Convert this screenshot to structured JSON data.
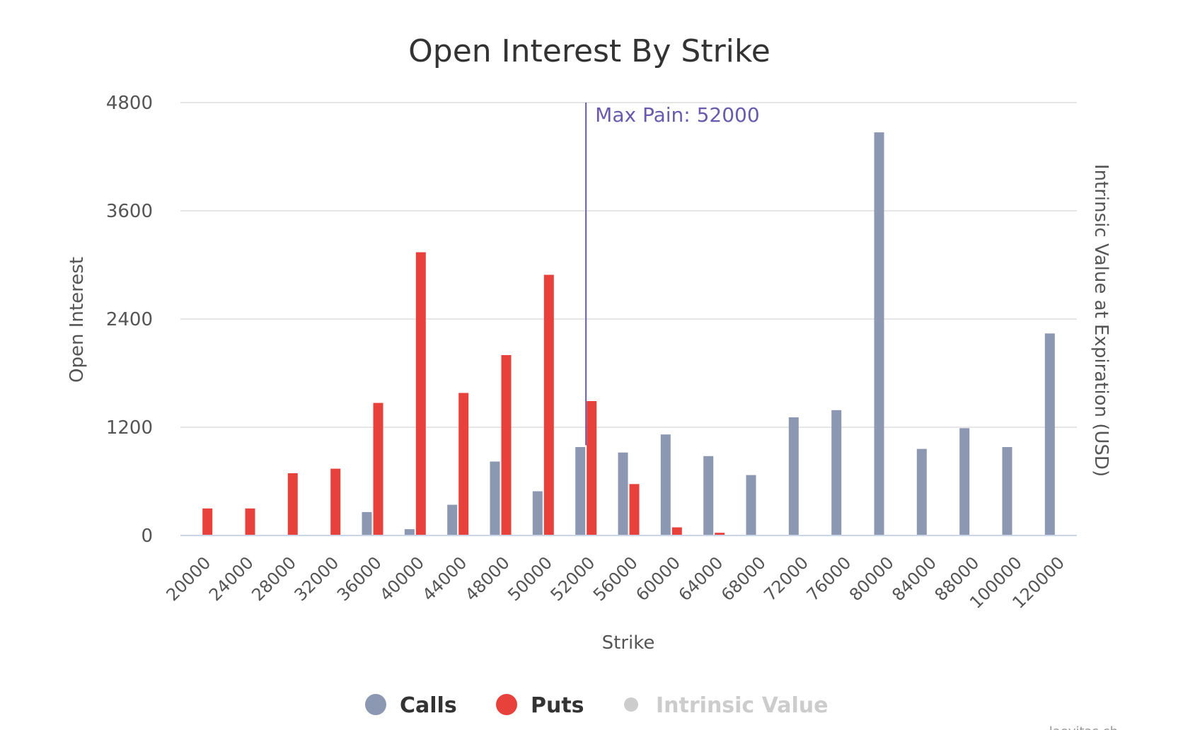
{
  "chart_data": {
    "type": "bar",
    "title": "Open Interest By Strike",
    "xlabel": "Strike",
    "ylabel": "Open Interest",
    "y2label": "Intrinsic Value at Expiration (USD)",
    "ylim": [
      0,
      4800
    ],
    "yticks": [
      0,
      1200,
      2400,
      3600,
      4800
    ],
    "grid": true,
    "legend_position": "bottom-center",
    "categories": [
      "20000",
      "24000",
      "28000",
      "32000",
      "36000",
      "40000",
      "44000",
      "48000",
      "50000",
      "52000",
      "56000",
      "60000",
      "64000",
      "68000",
      "72000",
      "76000",
      "80000",
      "84000",
      "88000",
      "100000",
      "120000"
    ],
    "series": [
      {
        "name": "Calls",
        "color": "#8c97b2",
        "values": [
          0,
          0,
          0,
          0,
          260,
          70,
          340,
          820,
          490,
          980,
          920,
          1120,
          880,
          670,
          1310,
          1390,
          4470,
          960,
          1190,
          980,
          2240
        ]
      },
      {
        "name": "Puts",
        "color": "#e8413b",
        "values": [
          300,
          300,
          690,
          740,
          1470,
          3140,
          1580,
          2000,
          2890,
          1490,
          570,
          90,
          30,
          0,
          0,
          0,
          0,
          0,
          0,
          0,
          0
        ]
      }
    ],
    "legend": [
      {
        "name": "Calls",
        "color": "#8c97b2",
        "active": true
      },
      {
        "name": "Puts",
        "color": "#e8413b",
        "active": true
      },
      {
        "name": "Intrinsic Value",
        "color": "#cccccc",
        "active": false
      }
    ],
    "plot_line": {
      "label": "Max Pain: 52000",
      "category": "52000",
      "color": "#6a5aad"
    },
    "credit": "laevitas.ch"
  }
}
